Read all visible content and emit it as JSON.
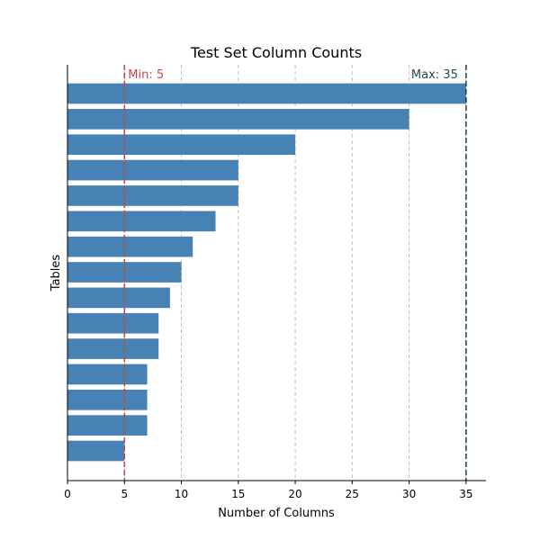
{
  "chart_data": {
    "type": "bar",
    "orientation": "horizontal",
    "title": "Test Set Column Counts",
    "xlabel": "Number of Columns",
    "ylabel": "Tables",
    "xlim": [
      0,
      36.75
    ],
    "xticks": [
      0,
      5,
      10,
      15,
      20,
      25,
      30,
      35
    ],
    "grid": "vertical-dashed",
    "values": [
      35,
      30,
      20,
      15,
      15,
      13,
      11,
      10,
      9,
      8,
      8,
      7,
      7,
      7,
      5
    ],
    "bar_color": "#4682b4",
    "reference_lines": [
      {
        "label": "Min: 5",
        "value": 5,
        "color": "#c8454a"
      },
      {
        "label": "Max: 35",
        "value": 35,
        "color": "#1f4e46"
      }
    ]
  }
}
